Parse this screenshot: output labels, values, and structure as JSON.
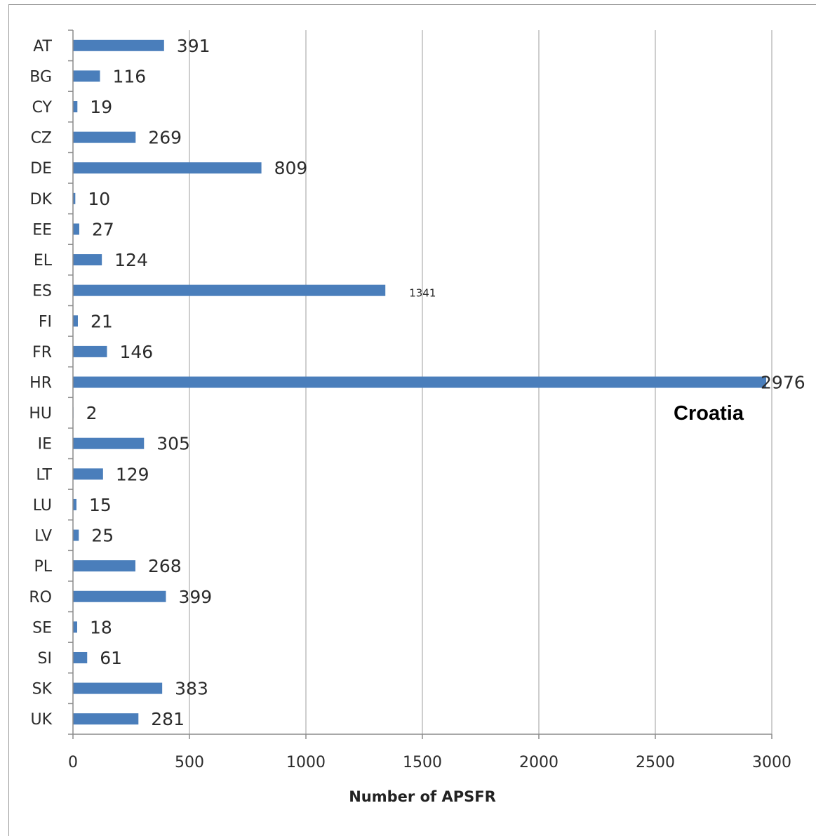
{
  "chart_data": {
    "type": "bar",
    "orientation": "horizontal",
    "categories": [
      "AT",
      "BG",
      "CY",
      "CZ",
      "DE",
      "DK",
      "EE",
      "EL",
      "ES",
      "FI",
      "FR",
      "HR",
      "HU",
      "IE",
      "LT",
      "LU",
      "LV",
      "PL",
      "RO",
      "SE",
      "SI",
      "SK",
      "UK"
    ],
    "values": [
      391,
      116,
      19,
      269,
      809,
      10,
      27,
      124,
      1341,
      21,
      146,
      2976,
      2,
      305,
      129,
      15,
      25,
      268,
      399,
      18,
      61,
      383,
      281
    ],
    "value_labels": [
      "391",
      "116",
      "19",
      "269",
      "809",
      "10",
      "27",
      "124",
      "1341",
      "21",
      "146",
      "2976",
      "2",
      "305",
      "129",
      "15",
      "25",
      "268",
      "399",
      "18",
      "61",
      "383",
      "281"
    ],
    "xlabel": "Number of APSFR",
    "ylabel": "",
    "xlim": [
      0,
      3000
    ],
    "xticks": [
      0,
      500,
      1000,
      1500,
      2000,
      2500,
      3000
    ],
    "grid": "vertical",
    "bar_color": "#4a7ebb",
    "annotation": "Croatia"
  }
}
